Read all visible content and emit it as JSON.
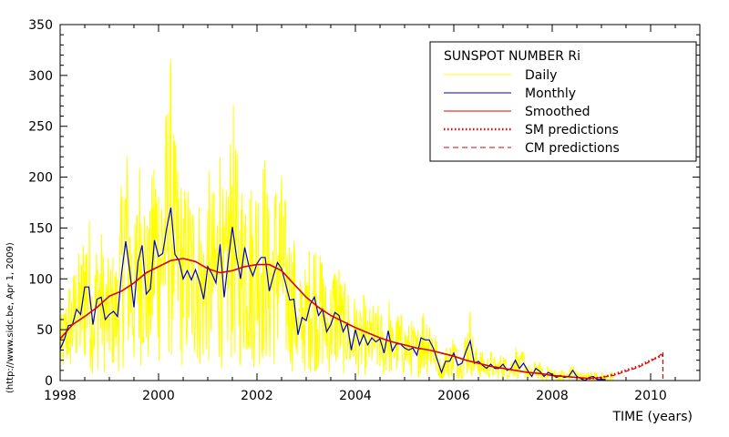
{
  "chart_data": {
    "type": "line",
    "xlabel": "TIME (years)",
    "ylabel": "",
    "side_credit": "(http://www.sidc.be, Apr  1, 2009)",
    "xlim": [
      1998,
      2011
    ],
    "ylim": [
      0,
      350
    ],
    "x_ticks": [
      1998,
      2000,
      2002,
      2004,
      2006,
      2008,
      2010
    ],
    "y_ticks": [
      0,
      50,
      100,
      150,
      200,
      250,
      300,
      350
    ],
    "legend": {
      "position": "top-right",
      "title": "SUNSPOT NUMBER Ri",
      "entries": [
        "Daily",
        "Monthly",
        "Smoothed",
        "SM predictions",
        "CM predictions"
      ]
    },
    "colors": {
      "daily": "#ffff00",
      "monthly": "#0000cc",
      "smoothed": "#dd0000",
      "sm_predictions": "#ee0000",
      "cm_predictions": "#dd0000"
    },
    "series": [
      {
        "name": "Monthly",
        "x": [
          1998.0,
          1998.083,
          1998.167,
          1998.25,
          1998.333,
          1998.417,
          1998.5,
          1998.583,
          1998.667,
          1998.75,
          1998.833,
          1998.917,
          1999.0,
          1999.083,
          1999.167,
          1999.25,
          1999.333,
          1999.417,
          1999.5,
          1999.583,
          1999.667,
          1999.75,
          1999.833,
          1999.917,
          2000.0,
          2000.083,
          2000.167,
          2000.25,
          2000.333,
          2000.417,
          2000.5,
          2000.583,
          2000.667,
          2000.75,
          2000.833,
          2000.917,
          2001.0,
          2001.083,
          2001.167,
          2001.25,
          2001.333,
          2001.417,
          2001.5,
          2001.583,
          2001.667,
          2001.75,
          2001.833,
          2001.917,
          2002.0,
          2002.083,
          2002.167,
          2002.25,
          2002.333,
          2002.417,
          2002.5,
          2002.583,
          2002.667,
          2002.75,
          2002.833,
          2002.917,
          2003.0,
          2003.083,
          2003.167,
          2003.25,
          2003.333,
          2003.417,
          2003.5,
          2003.583,
          2003.667,
          2003.75,
          2003.833,
          2003.917,
          2004.0,
          2004.083,
          2004.167,
          2004.25,
          2004.333,
          2004.417,
          2004.5,
          2004.583,
          2004.667,
          2004.75,
          2004.833,
          2004.917,
          2005.0,
          2005.083,
          2005.167,
          2005.25,
          2005.333,
          2005.417,
          2005.5,
          2005.583,
          2005.667,
          2005.75,
          2005.833,
          2005.917,
          2006.0,
          2006.083,
          2006.167,
          2006.25,
          2006.333,
          2006.417,
          2006.5,
          2006.583,
          2006.667,
          2006.75,
          2006.833,
          2006.917,
          2007.0,
          2007.083,
          2007.167,
          2007.25,
          2007.333,
          2007.417,
          2007.5,
          2007.583,
          2007.667,
          2007.75,
          2007.833,
          2007.917,
          2008.0,
          2008.083,
          2008.167,
          2008.25,
          2008.333,
          2008.417,
          2008.5,
          2008.583,
          2008.667,
          2008.75,
          2008.833,
          2008.917,
          2009.0,
          2009.083
        ],
        "y": [
          31,
          40,
          54,
          55,
          70,
          65,
          92,
          92,
          55,
          80,
          82,
          60,
          65,
          68,
          63,
          106,
          137,
          107,
          72,
          117,
          133,
          85,
          90,
          138,
          122,
          125,
          150,
          170,
          124,
          118,
          100,
          108,
          99,
          109,
          97,
          80,
          112,
          105,
          96,
          134,
          82,
          118,
          151,
          122,
          100,
          131,
          113,
          103,
          115,
          121,
          121,
          88,
          103,
          116,
          110,
          95,
          79,
          80,
          45,
          62,
          59,
          75,
          82,
          64,
          70,
          48,
          55,
          67,
          64,
          48,
          56,
          30,
          50,
          35,
          45,
          35,
          42,
          38,
          41,
          27,
          49,
          29,
          36,
          36,
          32,
          30,
          32,
          25,
          42,
          40,
          40,
          32,
          20,
          8,
          19,
          19,
          27,
          15,
          17,
          29,
          39,
          17,
          19,
          15,
          12,
          16,
          12,
          12,
          16,
          10,
          12,
          20,
          12,
          17,
          10,
          4,
          12,
          9,
          4,
          8,
          6,
          3,
          5,
          3,
          4,
          10,
          4,
          2,
          0,
          3,
          4,
          1,
          1,
          1
        ]
      },
      {
        "name": "Smoothed",
        "x": [
          1998.0,
          1998.25,
          1998.5,
          1998.75,
          1999.0,
          1999.25,
          1999.5,
          1999.75,
          2000.0,
          2000.25,
          2000.5,
          2000.75,
          2001.0,
          2001.25,
          2001.5,
          2001.75,
          2002.0,
          2002.25,
          2002.5,
          2002.75,
          2003.0,
          2003.25,
          2003.5,
          2003.75,
          2004.0,
          2004.25,
          2004.5,
          2004.75,
          2005.0,
          2005.25,
          2005.5,
          2005.75,
          2006.0,
          2006.25,
          2006.5,
          2006.75,
          2007.0,
          2007.25,
          2007.5,
          2007.75,
          2008.0,
          2008.25,
          2008.5,
          2008.75
        ],
        "y": [
          41,
          55,
          63,
          72,
          83,
          88,
          96,
          106,
          112,
          118,
          120,
          117,
          110,
          106,
          108,
          112,
          114,
          114,
          108,
          95,
          82,
          72,
          64,
          58,
          52,
          47,
          42,
          38,
          35,
          32,
          30,
          27,
          24,
          20,
          17,
          14,
          12,
          10,
          8,
          7,
          5,
          4,
          3,
          2
        ]
      },
      {
        "name": "SM predictions",
        "x": [
          2008.75,
          2009.0,
          2009.25,
          2009.5,
          2009.75,
          2010.0,
          2010.25
        ],
        "y": [
          2,
          3,
          6,
          10,
          14,
          20,
          25
        ]
      },
      {
        "name": "CM predictions",
        "x": [
          2008.75,
          2009.0,
          2009.25,
          2009.5,
          2009.75,
          2010.0,
          2010.17,
          2010.25,
          2010.25
        ],
        "y": [
          2,
          3,
          5,
          9,
          13,
          19,
          24,
          28,
          0
        ]
      }
    ]
  }
}
